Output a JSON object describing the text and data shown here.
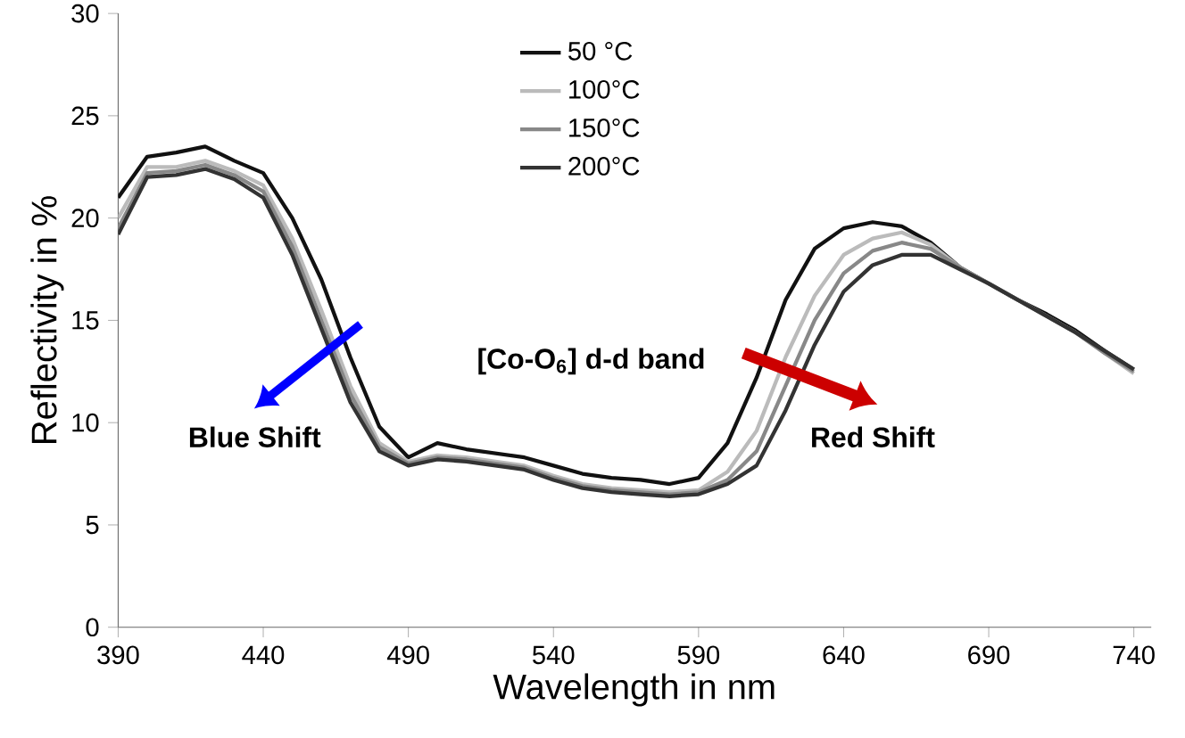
{
  "chart_data": {
    "type": "line",
    "xlabel": "Wavelength in nm",
    "ylabel": "Reflectivity in %",
    "x": [
      390,
      400,
      410,
      420,
      430,
      440,
      450,
      460,
      470,
      480,
      490,
      500,
      510,
      520,
      530,
      540,
      550,
      560,
      570,
      580,
      590,
      600,
      610,
      620,
      630,
      640,
      650,
      660,
      670,
      680,
      690,
      700,
      710,
      720,
      730,
      740
    ],
    "xlim": [
      390,
      746
    ],
    "ylim": [
      0,
      30
    ],
    "xticks": [
      390,
      440,
      490,
      540,
      590,
      640,
      690,
      740
    ],
    "yticks": [
      0,
      5,
      10,
      15,
      20,
      25,
      30
    ],
    "grid": false,
    "legend": "top",
    "marker": "none",
    "line_style": "solid",
    "series": [
      {
        "name": "50 °C",
        "color": "#111111",
        "values": [
          21,
          23,
          23.2,
          23.5,
          22.8,
          22.2,
          20,
          17,
          13.2,
          9.8,
          8.3,
          9.0,
          8.7,
          8.5,
          8.3,
          7.9,
          7.5,
          7.3,
          7.2,
          7.0,
          7.3,
          9.0,
          12.2,
          16,
          18.5,
          19.5,
          19.8,
          19.6,
          18.8,
          17.6,
          16.8,
          16,
          15.3,
          14.5,
          13.5,
          12.6
        ]
      },
      {
        "name": "100°C",
        "color": "#bbbbbb",
        "values": [
          20,
          22.5,
          22.5,
          22.8,
          22.3,
          21.6,
          19,
          15.5,
          11.8,
          9.0,
          8.1,
          8.4,
          8.3,
          8.1,
          7.9,
          7.4,
          7.0,
          6.8,
          6.7,
          6.6,
          6.7,
          7.6,
          9.6,
          13.2,
          16.2,
          18.2,
          19.0,
          19.3,
          18.7,
          17.6,
          16.8,
          16,
          15.2,
          14.4,
          13.4,
          12.4
        ]
      },
      {
        "name": "150°C",
        "color": "#888888",
        "values": [
          19.5,
          22.2,
          22.3,
          22.6,
          22.1,
          21.3,
          18.6,
          15,
          11.4,
          8.8,
          8.0,
          8.3,
          8.2,
          8.0,
          7.8,
          7.3,
          6.9,
          6.7,
          6.6,
          6.5,
          6.6,
          7.2,
          8.6,
          11.8,
          15,
          17.3,
          18.4,
          18.8,
          18.5,
          17.6,
          16.8,
          16,
          15.2,
          14.4,
          13.4,
          12.5
        ]
      },
      {
        "name": "200°C",
        "color": "#333333",
        "values": [
          19.2,
          22,
          22.1,
          22.4,
          21.9,
          21.0,
          18.2,
          14.6,
          11,
          8.6,
          7.9,
          8.2,
          8.1,
          7.9,
          7.7,
          7.2,
          6.8,
          6.6,
          6.5,
          6.4,
          6.5,
          7.0,
          7.9,
          10.6,
          13.8,
          16.4,
          17.7,
          18.2,
          18.2,
          17.5,
          16.8,
          16,
          15.2,
          14.4,
          13.5,
          12.6
        ]
      }
    ],
    "annotations": [
      "[Co-O$_{6}$] d-d band",
      "Blue Shift",
      "Red Shift"
    ]
  }
}
